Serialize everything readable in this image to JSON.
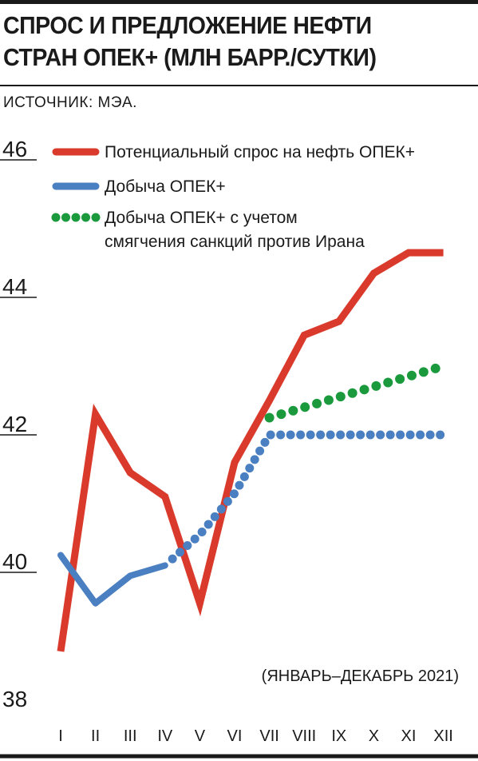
{
  "title_line1": "СПРОС И ПРЕДЛОЖЕНИЕ НЕФТИ",
  "title_line2": "СТРАН ОПЕК+ (МЛН БАРР./СУТКИ)",
  "source": "ИСТОЧНИК: МЭА.",
  "period_note": "(ЯНВАРЬ–ДЕКАБРЬ 2021)",
  "colors": {
    "demand": "#d93a2b",
    "production": "#4a7fc1",
    "production_adj": "#1a9a3c",
    "text": "#1a1a1a"
  },
  "chart_data": {
    "type": "line",
    "categories": [
      "I",
      "II",
      "III",
      "IV",
      "V",
      "VI",
      "VII",
      "VIII",
      "IX",
      "X",
      "XI",
      "XII"
    ],
    "ylim": [
      38,
      46
    ],
    "yticks": [
      "46",
      "44",
      "42",
      "40",
      "38"
    ],
    "grid": false,
    "legend_position": "top",
    "series": [
      {
        "name": "Потенциальный спрос на нефть ОПЕК+",
        "style": "solid",
        "color": "#d93a2b",
        "values": [
          38.85,
          42.3,
          41.45,
          41.1,
          39.55,
          41.6,
          42.5,
          43.45,
          43.65,
          44.35,
          44.65,
          44.65
        ]
      },
      {
        "name": "Добыча ОПЕК+",
        "style": "solid-then-dotted",
        "color": "#4a7fc1",
        "values": [
          40.25,
          39.55,
          39.95,
          40.1,
          40.55,
          41.15,
          42.0,
          42.0,
          42.0,
          42.0,
          42.0,
          42.0
        ]
      },
      {
        "name": "Добыча ОПЕК+ с учетом смягчения санкций против Ирана",
        "style": "dotted",
        "color": "#1a9a3c",
        "values": [
          null,
          null,
          null,
          null,
          null,
          null,
          42.25,
          42.4,
          42.55,
          42.7,
          42.85,
          43.0
        ]
      }
    ]
  }
}
